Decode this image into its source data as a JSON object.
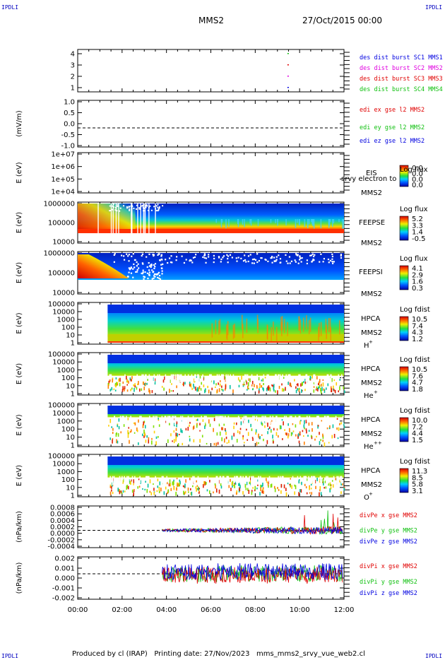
{
  "corner_label": "IPDLI",
  "header": {
    "title": "MMS2",
    "date": "27/Oct/2015 00:00"
  },
  "footer": {
    "text": "Produced by cl (IRAP)   Printing date: 27/Nov/2023   mms_mms2_srvy_vue_web2.cl"
  },
  "colors": {
    "red": "#e00000",
    "magenta": "#e000e0",
    "green": "#10c010",
    "blue": "#0000e0"
  },
  "x_axis": {
    "range_hours": [
      0,
      12
    ],
    "tick_labels": [
      "00:00",
      "02:00",
      "04:00",
      "06:00",
      "08:00",
      "10:00",
      "12:00"
    ]
  },
  "chart_data": [
    {
      "id": "burst",
      "type": "scatter",
      "yticks": [
        "4",
        "3",
        "2",
        "1"
      ],
      "ylabel": "",
      "legend": [
        {
          "name": "des dist burst SC1 MMS1",
          "color": "#0000e0"
        },
        {
          "name": "des dist burst SC2 MMS2",
          "color": "#e000e0"
        },
        {
          "name": "des dist burst SC3 MMS3",
          "color": "#e00000"
        },
        {
          "name": "des dist burst SC4 MMS4",
          "color": "#10c010"
        }
      ],
      "marks": [
        {
          "x": 9.45,
          "y": 4,
          "color": "#10c010"
        },
        {
          "x": 9.45,
          "y": 3,
          "color": "#e00000"
        },
        {
          "x": 9.45,
          "y": 2,
          "color": "#e000e0"
        },
        {
          "x": 9.45,
          "y": 1,
          "color": "#0000e0"
        }
      ]
    },
    {
      "id": "edi",
      "type": "line",
      "ylabel": "(mV/m)",
      "yticks": [
        "1.0",
        "0.5",
        "0.0",
        "-0.5",
        "-1.0"
      ],
      "ylim": [
        -1.0,
        1.0
      ],
      "legend": [
        {
          "name": "edi ex gse l2 MMS2",
          "color": "#e00000"
        },
        {
          "name": "edi ey gse l2 MMS2",
          "color": "#10c010"
        },
        {
          "name": "edi ez gse l2 MMS2",
          "color": "#0000e0"
        }
      ]
    },
    {
      "id": "eis",
      "type": "heatmap",
      "ylabel": "E (eV)",
      "yticks": [
        "1e+07",
        "1e+06",
        "1e+05",
        "1e+04"
      ],
      "instrument": "EIS",
      "extra": "srvy electron to",
      "sat": "MMS2",
      "cbar_title": "Log flux",
      "cbar_ticks": [
        "0.0",
        "0.0",
        "0.0",
        "0.0"
      ]
    },
    {
      "id": "feepse",
      "type": "heatmap",
      "ylabel": "E (eV)",
      "yticks": [
        "1000000",
        "100000",
        "10000"
      ],
      "instrument": "FEEPSE",
      "sat": "MMS2",
      "cbar_title": "Log flux",
      "cbar_ticks": [
        "5.2",
        "3.3",
        "1.4",
        "-0.5"
      ]
    },
    {
      "id": "feepsi",
      "type": "heatmap",
      "ylabel": "E (eV)",
      "yticks": [
        "1000000",
        "100000",
        "10000"
      ],
      "instrument": "FEEPSI",
      "sat": "MMS2",
      "cbar_title": "Log flux",
      "cbar_ticks": [
        "4.1",
        "2.9",
        "1.6",
        "0.3"
      ]
    },
    {
      "id": "hpca_h",
      "type": "heatmap",
      "ylabel": "E (eV)",
      "yticks": [
        "100000",
        "10000",
        "1000",
        "100",
        "10",
        "1"
      ],
      "instrument": "HPCA",
      "sat": "MMS2",
      "species": "H",
      "species_sup": "+",
      "cbar_title": "Log fdist",
      "cbar_ticks": [
        "10.5",
        "7.4",
        "4.3",
        "1.2"
      ]
    },
    {
      "id": "hpca_he",
      "type": "heatmap",
      "ylabel": "E (eV)",
      "yticks": [
        "100000",
        "10000",
        "1000",
        "100",
        "10",
        "1"
      ],
      "instrument": "HPCA",
      "sat": "MMS2",
      "species": "He",
      "species_sup": "+",
      "cbar_title": "Log fdist",
      "cbar_ticks": [
        "10.5",
        "7.6",
        "4.7",
        "1.8"
      ]
    },
    {
      "id": "hpca_hepp",
      "type": "heatmap",
      "ylabel": "E (eV)",
      "yticks": [
        "100000",
        "10000",
        "1000",
        "100",
        "10",
        "1"
      ],
      "instrument": "HPCA",
      "sat": "MMS2",
      "species": "He",
      "species_sup": "++",
      "cbar_title": "Log fdist",
      "cbar_ticks": [
        "10.0",
        "7.2",
        "4.4",
        "1.5"
      ]
    },
    {
      "id": "hpca_o",
      "type": "heatmap",
      "ylabel": "E (eV)",
      "yticks": [
        "100000",
        "10000",
        "1000",
        "100",
        "10",
        "1"
      ],
      "instrument": "HPCA",
      "sat": "MMS2",
      "species": "O",
      "species_sup": "+",
      "cbar_title": "Log fdist",
      "cbar_ticks": [
        "11.3",
        "8.5",
        "5.8",
        "3.1"
      ]
    },
    {
      "id": "divpe",
      "type": "line",
      "ylabel": "(nPa/km)",
      "yticks": [
        "0.0008",
        "0.0006",
        "0.0004",
        "0.0002",
        "0.0000",
        "-0.0002",
        "-0.0004"
      ],
      "ylim": [
        -0.0005,
        0.0008
      ],
      "legend": [
        {
          "name": "divPe x gse MMS2",
          "color": "#e00000"
        },
        {
          "name": "divPe y gse MMS2",
          "color": "#10c010"
        },
        {
          "name": "divPe z gse MMS2",
          "color": "#0000e0"
        }
      ]
    },
    {
      "id": "divpi",
      "type": "line",
      "ylabel": "(nPa/km)",
      "yticks": [
        "0.002",
        "0.001",
        "0.000",
        "-0.001",
        "-0.002"
      ],
      "ylim": [
        -0.0025,
        0.0025
      ],
      "legend": [
        {
          "name": "divPi x gse MMS2",
          "color": "#e00000"
        },
        {
          "name": "divPi y gse MMS2",
          "color": "#10c010"
        },
        {
          "name": "divPi z gse MMS2",
          "color": "#0000e0"
        }
      ]
    }
  ]
}
